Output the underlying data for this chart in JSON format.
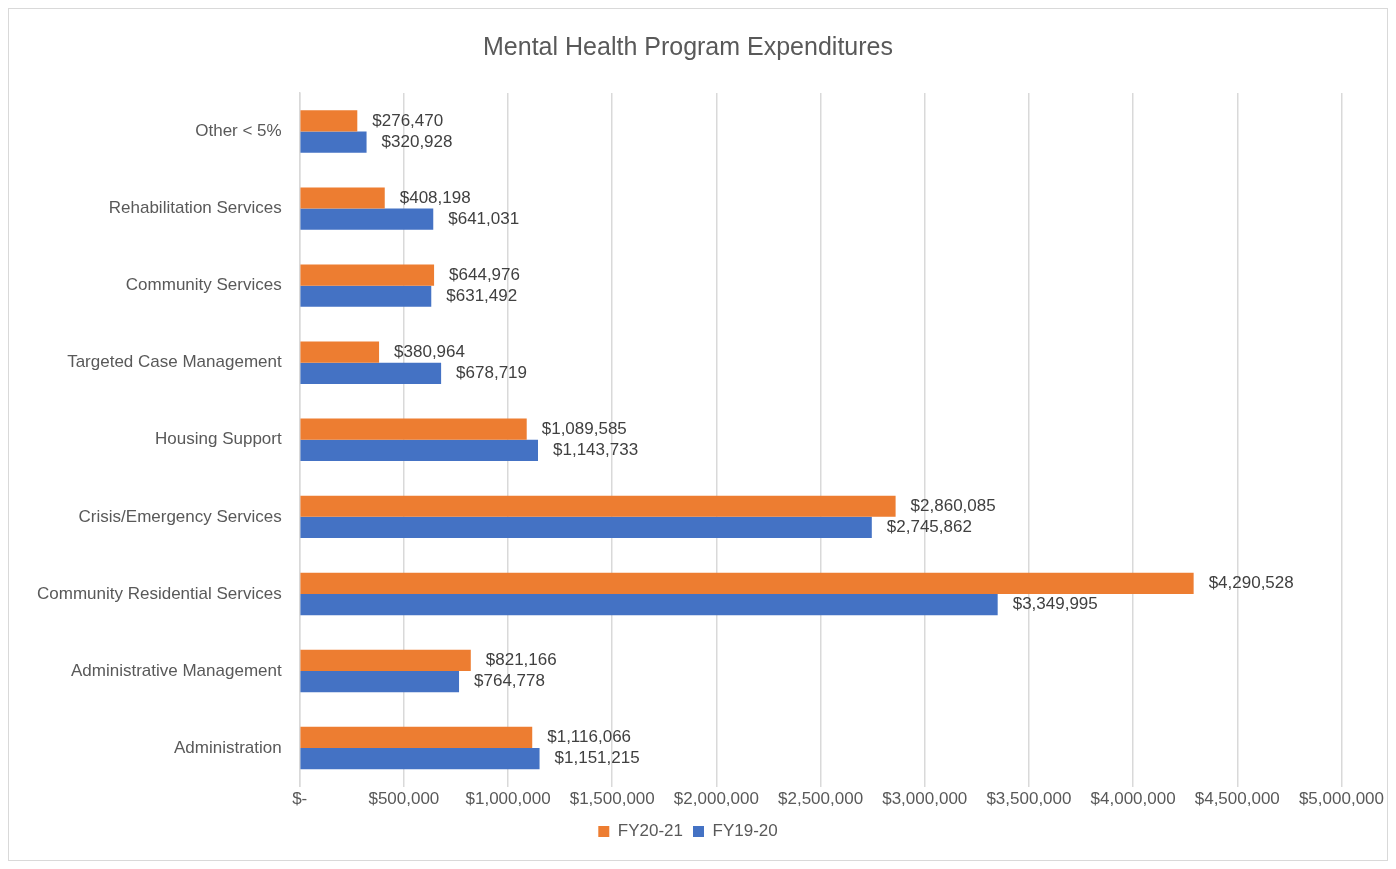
{
  "chart_data": {
    "type": "bar",
    "orientation": "horizontal",
    "title": "Mental Health Program Expenditures",
    "categories": [
      "Other < 5%",
      "Rehabilitation Services",
      "Community Services",
      "Targeted Case Management",
      "Housing Support",
      "Crisis/Emergency Services",
      "Community Residential Services",
      "Administrative Management",
      "Administration"
    ],
    "series": [
      {
        "name": "FY20-21",
        "color": "#ed7d31",
        "values": [
          276470,
          408198,
          644976,
          380964,
          1089585,
          2860085,
          4290528,
          821166,
          1116066
        ],
        "value_labels": [
          "$276,470",
          "$408,198",
          "$644,976",
          "$380,964",
          "$1,089,585",
          "$2,860,085",
          "$4,290,528",
          "$821,166",
          "$1,116,066"
        ]
      },
      {
        "name": "FY19-20",
        "color": "#4472c4",
        "values": [
          320928,
          641031,
          631492,
          678719,
          1143733,
          2745862,
          3349995,
          764778,
          1151215
        ],
        "value_labels": [
          "$320,928",
          "$641,031",
          "$631,492",
          "$678,719",
          "$1,143,733",
          "$2,745,862",
          "$3,349,995",
          "$764,778",
          "$1,151,215"
        ]
      }
    ],
    "xlim": [
      0,
      5000000
    ],
    "xticks": [
      {
        "value": 0,
        "label": "$-"
      },
      {
        "value": 500000,
        "label": "$500,000"
      },
      {
        "value": 1000000,
        "label": "$1,000,000"
      },
      {
        "value": 1500000,
        "label": "$1,500,000"
      },
      {
        "value": 2000000,
        "label": "$2,000,000"
      },
      {
        "value": 2500000,
        "label": "$2,500,000"
      },
      {
        "value": 3000000,
        "label": "$3,000,000"
      },
      {
        "value": 3500000,
        "label": "$3,500,000"
      },
      {
        "value": 4000000,
        "label": "$4,000,000"
      },
      {
        "value": 4500000,
        "label": "$4,500,000"
      },
      {
        "value": 5000000,
        "label": "$5,000,000"
      }
    ],
    "grid": "x",
    "legend": "bottom"
  }
}
